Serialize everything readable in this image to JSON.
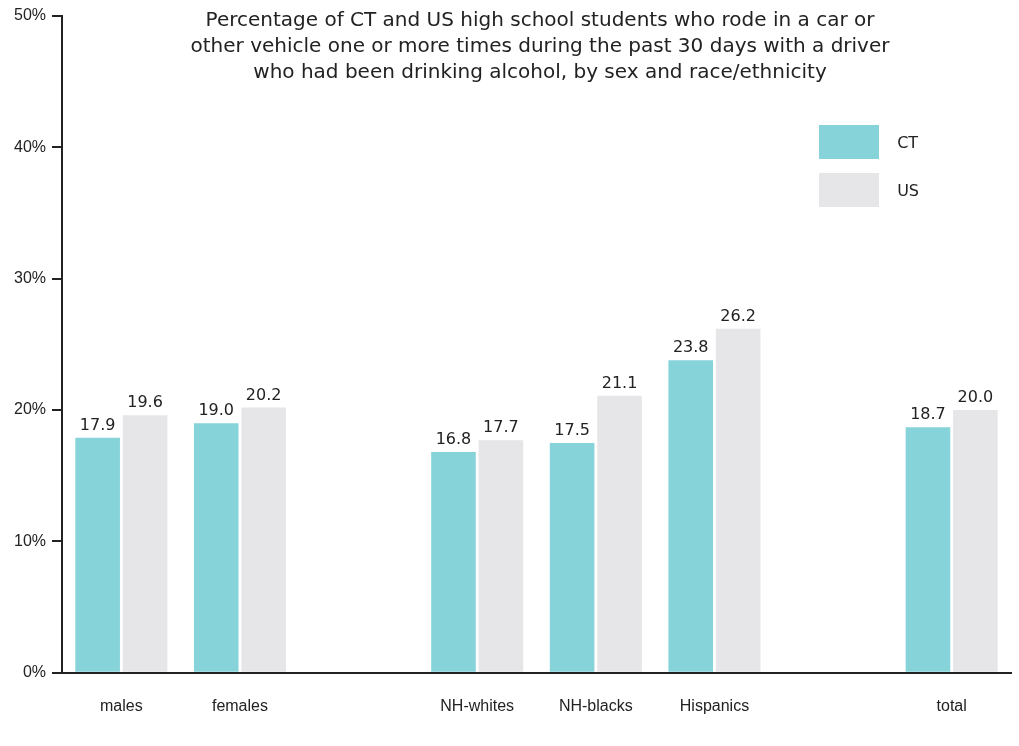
{
  "chart_data": {
    "type": "bar",
    "title": "Percentage of CT and US high school students who rode in a car or other vehicle one or more times during the past 30 days with a driver who had been drinking alcohol, by sex and race/ethnicity",
    "categories": [
      "males",
      "females",
      null,
      "NH-whites",
      "NH-blacks",
      "Hispanics",
      null,
      "total"
    ],
    "series": [
      {
        "name": "CT",
        "color": "#86d3da",
        "values": [
          17.9,
          19.0,
          null,
          16.8,
          17.5,
          23.8,
          null,
          18.7
        ],
        "value_labels": [
          "17.9",
          "19.0",
          null,
          "16.8",
          "17.5",
          "23.8",
          null,
          "18.7"
        ]
      },
      {
        "name": "US",
        "color": "#e6e6e8",
        "values": [
          19.6,
          20.2,
          null,
          17.7,
          21.1,
          26.2,
          null,
          20.0
        ],
        "value_labels": [
          "19.6",
          "20.2",
          null,
          "17.7",
          "21.1",
          "26.2",
          null,
          "20.0"
        ]
      }
    ],
    "ylim": [
      0,
      50
    ],
    "yticks": [
      {
        "value": 0,
        "label": "0%"
      },
      {
        "value": 10,
        "label": "10%"
      },
      {
        "value": 20,
        "label": "20%"
      },
      {
        "value": 30,
        "label": "30%"
      },
      {
        "value": 40,
        "label": "40%"
      },
      {
        "value": 50,
        "label": "50%"
      }
    ],
    "grid": false,
    "legend": "top right"
  }
}
